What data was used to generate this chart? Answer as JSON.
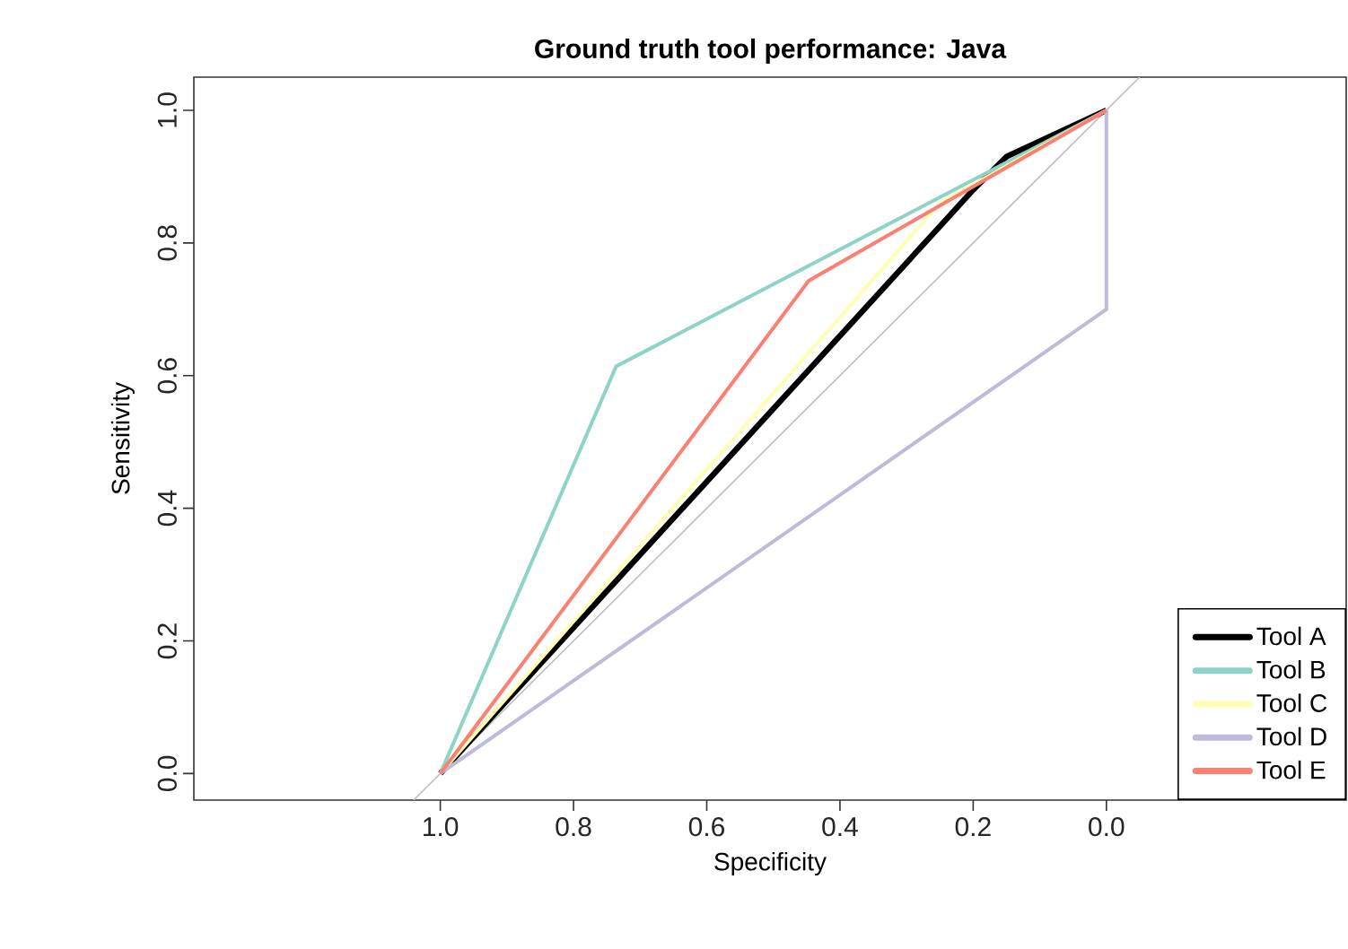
{
  "chart_data": {
    "type": "line",
    "title": "Ground truth tool performance: Java",
    "xlabel": "Specificity",
    "ylabel": "Sensitivity",
    "xlim": [
      1.37,
      -0.36
    ],
    "ylim": [
      -0.04,
      1.05
    ],
    "xticks": [
      {
        "value": 1,
        "label": "1.0"
      },
      {
        "value": 0.8,
        "label": "0.8"
      },
      {
        "value": 0.6,
        "label": "0.6"
      },
      {
        "value": 0.4,
        "label": "0.4"
      },
      {
        "value": 0.2,
        "label": "0.2"
      },
      {
        "value": 0,
        "label": "0.0"
      }
    ],
    "yticks": [
      {
        "value": 0,
        "label": "0.0"
      },
      {
        "value": 0.2,
        "label": "0.2"
      },
      {
        "value": 0.4,
        "label": "0.4"
      },
      {
        "value": 0.6,
        "label": "0.6"
      },
      {
        "value": 0.8,
        "label": "0.8"
      },
      {
        "value": 1,
        "label": "1.0"
      }
    ],
    "grid": false,
    "legend": "bottom right",
    "series": [
      {
        "color": "#bebebe",
        "x": [
          1.04,
          -0.05
        ],
        "values": [
          -0.04,
          1.05
        ]
      },
      {
        "name": "Tool A",
        "color": "#000000",
        "x": [
          1,
          0.2,
          0.15,
          0
        ],
        "values": [
          0,
          0.88,
          0.93,
          1
        ]
      },
      {
        "name": "Tool B",
        "color": "#8dd3c7",
        "x": [
          1,
          0.736,
          0
        ],
        "values": [
          0,
          0.614,
          1
        ]
      },
      {
        "name": "Tool C",
        "color": "#ffffb3",
        "x": [
          1,
          0.25,
          0
        ],
        "values": [
          0,
          0.86,
          1
        ]
      },
      {
        "name": "Tool D",
        "color": "#bebada",
        "x": [
          1,
          0,
          0
        ],
        "values": [
          0,
          0.7,
          1
        ]
      },
      {
        "name": "Tool E",
        "color": "#fb8072",
        "x": [
          1,
          0.447,
          0
        ],
        "values": [
          0,
          0.743,
          1
        ]
      }
    ]
  }
}
